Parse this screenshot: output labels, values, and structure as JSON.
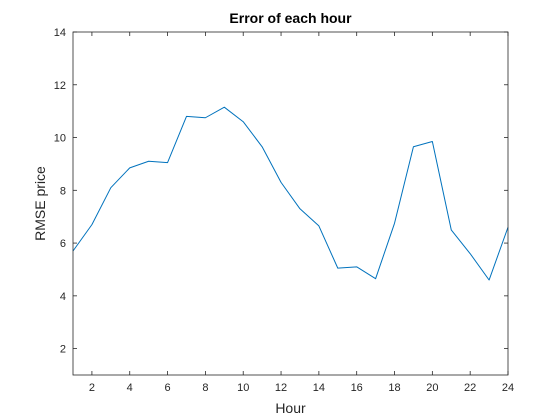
{
  "chart_data": {
    "type": "line",
    "title": "Error of each hour",
    "xlabel": "Hour",
    "ylabel": "RMSE price",
    "xlim": [
      1,
      24
    ],
    "ylim": [
      1,
      14
    ],
    "xticks": [
      2,
      4,
      6,
      8,
      10,
      12,
      14,
      16,
      18,
      20,
      22,
      24
    ],
    "yticks": [
      2,
      4,
      6,
      8,
      10,
      12,
      14
    ],
    "grid": false,
    "box": true,
    "series": [
      {
        "color": "#0072bd",
        "x": [
          1,
          2,
          3,
          4,
          5,
          6,
          7,
          8,
          9,
          10,
          11,
          12,
          13,
          14,
          15,
          16,
          17,
          18,
          19,
          20,
          21,
          22,
          23,
          24
        ],
        "y": [
          5.7,
          6.7,
          8.1,
          8.85,
          9.1,
          9.05,
          10.8,
          10.75,
          11.15,
          10.6,
          9.65,
          8.3,
          7.3,
          6.65,
          5.05,
          5.1,
          4.65,
          6.75,
          9.65,
          9.85,
          6.5,
          5.6,
          4.6,
          6.6
        ]
      }
    ]
  }
}
